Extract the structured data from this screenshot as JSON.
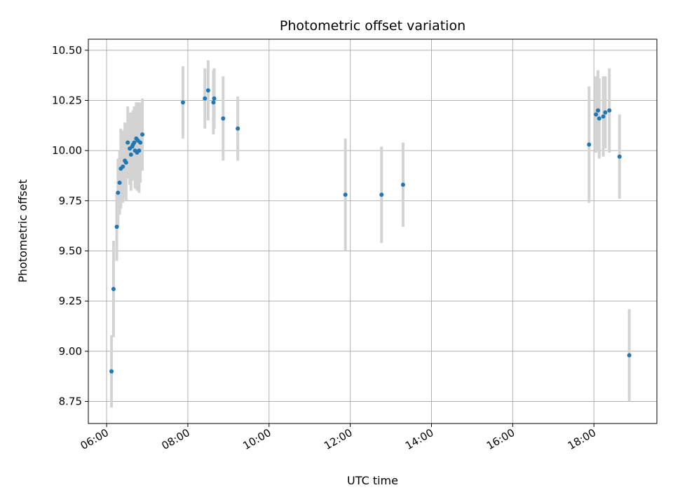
{
  "chart_data": {
    "type": "scatter",
    "title": "Photometric offset variation",
    "xlabel": "UTC time",
    "ylabel": "Photometric offset",
    "x_unit": "hours (UTC)",
    "xlim": [
      5.55,
      19.55
    ],
    "ylim": [
      8.64,
      10.555
    ],
    "x_ticks": [
      6,
      8,
      10,
      12,
      14,
      16,
      18
    ],
    "x_tick_labels": [
      "06:00",
      "08:00",
      "10:00",
      "12:00",
      "14:00",
      "16:00",
      "18:00"
    ],
    "y_ticks": [
      8.75,
      9.0,
      9.25,
      9.5,
      9.75,
      10.0,
      10.25,
      10.5
    ],
    "y_tick_labels": [
      "8.75",
      "9.00",
      "9.25",
      "9.50",
      "9.75",
      "10.00",
      "10.25",
      "10.50"
    ],
    "grid": true,
    "colors": {
      "marker": "#1f77b4",
      "errorbar": "#d3d3d3",
      "grid": "#b0b0b0"
    },
    "series": [
      {
        "x": [
          6.12,
          6.17,
          6.25,
          6.28,
          6.32,
          6.35,
          6.4,
          6.45,
          6.48,
          6.52,
          6.57,
          6.6,
          6.63,
          6.65,
          6.68,
          6.7,
          6.73,
          6.75,
          6.77,
          6.8,
          6.83,
          6.88,
          7.88,
          8.42,
          8.5,
          8.63,
          8.65,
          8.87,
          9.23,
          11.88,
          12.77,
          13.3,
          17.88,
          18.05,
          18.1,
          18.13,
          18.23,
          18.28,
          18.38,
          18.63,
          18.87
        ],
        "y": [
          8.9,
          9.31,
          9.62,
          9.79,
          9.84,
          9.91,
          9.92,
          9.95,
          9.94,
          10.04,
          10.01,
          9.98,
          10.02,
          10.03,
          10.04,
          10.0,
          10.06,
          9.99,
          10.05,
          10.0,
          10.04,
          10.08,
          10.24,
          10.26,
          10.3,
          10.24,
          10.26,
          10.16,
          10.11,
          9.78,
          9.78,
          9.83,
          10.03,
          10.18,
          10.2,
          10.16,
          10.17,
          10.19,
          10.2,
          9.97,
          8.98
        ],
        "err": [
          0.18,
          0.24,
          0.17,
          0.17,
          0.16,
          0.2,
          0.18,
          0.19,
          0.19,
          0.18,
          0.18,
          0.18,
          0.17,
          0.17,
          0.18,
          0.19,
          0.18,
          0.19,
          0.19,
          0.21,
          0.2,
          0.18,
          0.18,
          0.15,
          0.15,
          0.16,
          0.15,
          0.21,
          0.16,
          0.28,
          0.24,
          0.21,
          0.29,
          0.19,
          0.2,
          0.2,
          0.2,
          0.18,
          0.21,
          0.21,
          0.23
        ]
      }
    ]
  }
}
